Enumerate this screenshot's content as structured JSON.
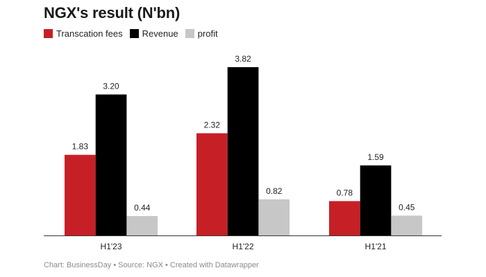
{
  "chart_data": {
    "type": "bar",
    "title": "NGX's result (N'bn)",
    "categories": [
      "H1'23",
      "H1'22",
      "H1'21"
    ],
    "series": [
      {
        "name": "Transcation fees",
        "color": "#c62026",
        "values": [
          1.83,
          2.32,
          0.78
        ]
      },
      {
        "name": "Revenue",
        "color": "#000000",
        "values": [
          3.2,
          3.82,
          1.59
        ]
      },
      {
        "name": "profit",
        "color": "#c7c7c7",
        "values": [
          0.44,
          0.82,
          0.45
        ]
      }
    ],
    "ylim": [
      0,
      3.82
    ],
    "grid": false,
    "legend_position": "top-left",
    "data_labels": true,
    "footer": "Chart: BusinessDay • Source: NGX • Created with Datawrapper"
  }
}
